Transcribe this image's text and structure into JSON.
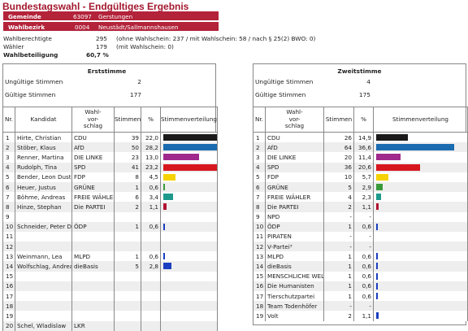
{
  "title": "Bundestagswahl - Endgültiges Ergebnis",
  "header": {
    "gemeinde_label": "Gemeinde",
    "gemeinde_nr": "63097",
    "gemeinde_name": "Gerstungen",
    "wahlbezirk_label": "Wahlbezirk",
    "wahlbezirk_nr": "0004",
    "wahlbezirk_name": "Neustädt/Sallmannshausen"
  },
  "info": {
    "wahlberechtigte_label": "Wahlberechtigte",
    "wahlberechtigte_value": "295",
    "wahlberechtigte_note": "(ohne Wahlschein: 237 / mit Wahlschein: 58 / nach § 25(2) BWO: 0)",
    "waehler_label": "Wähler",
    "waehler_value": "179",
    "waehler_note": "(mit Wahlschein: 0)",
    "beteiligung_label": "Wahlbeteiligung",
    "beteiligung_value": "60,7 %"
  },
  "columns": {
    "nr": "Nr.",
    "kandidat": "Kandidat",
    "wahlvorschlag": "Wahl-vor-schlag",
    "stimmen": "Stimmen",
    "prozent": "%",
    "verteilung": "Stimmenverteilung"
  },
  "erststimme": {
    "title": "Erststimme",
    "ungueltig_label": "Ungültige Stimmen",
    "ungueltig_value": "2",
    "gueltig_label": "Gültige Stimmen",
    "gueltig_value": "177",
    "rows": [
      {
        "nr": "1",
        "kandidat": "Hirte, Christian",
        "partei": "CDU",
        "stimmen": "39",
        "prozent": "22,0",
        "pct": 22.0,
        "color": "#1a1a1a"
      },
      {
        "nr": "2",
        "kandidat": "Stöber, Klaus",
        "partei": "AfD",
        "stimmen": "50",
        "prozent": "28,2",
        "pct": 28.2,
        "color": "#1a6bb0"
      },
      {
        "nr": "3",
        "kandidat": "Renner, Martina",
        "partei": "DIE LINKE",
        "stimmen": "23",
        "prozent": "13,0",
        "pct": 13.0,
        "color": "#a0288c"
      },
      {
        "nr": "4",
        "kandidat": "Rudolph, Tina",
        "partei": "SPD",
        "stimmen": "41",
        "prozent": "23,2",
        "pct": 23.2,
        "color": "#d7161e"
      },
      {
        "nr": "5",
        "kandidat": "Bender, Leon Dustin",
        "partei": "FDP",
        "stimmen": "8",
        "prozent": "4,5",
        "pct": 4.5,
        "color": "#f5d200"
      },
      {
        "nr": "6",
        "kandidat": "Heuer, Justus",
        "partei": "GRÜNE",
        "stimmen": "1",
        "prozent": "0,6",
        "pct": 0.6,
        "color": "#3a9a3a"
      },
      {
        "nr": "7",
        "kandidat": "Böhme, Andreas",
        "partei": "FREIE WÄHLER",
        "stimmen": "6",
        "prozent": "3,4",
        "pct": 3.4,
        "color": "#1e9a8c"
      },
      {
        "nr": "8",
        "kandidat": "Hinze, Stephan",
        "partei": "Die PARTEI",
        "stimmen": "2",
        "prozent": "1,1",
        "pct": 1.1,
        "color": "#b01030"
      },
      {
        "nr": "9",
        "kandidat": "",
        "partei": "",
        "stimmen": "",
        "prozent": "",
        "pct": 0,
        "color": "#1a3fc0"
      },
      {
        "nr": "10",
        "kandidat": "Schneider, Peter Dr.",
        "partei": "ÖDP",
        "stimmen": "1",
        "prozent": "0,6",
        "pct": 0.6,
        "color": "#1a3fc0"
      },
      {
        "nr": "11",
        "kandidat": "",
        "partei": "",
        "stimmen": "",
        "prozent": "",
        "pct": 0,
        "color": "#1a3fc0"
      },
      {
        "nr": "12",
        "kandidat": "",
        "partei": "",
        "stimmen": "",
        "prozent": "",
        "pct": 0,
        "color": "#1a3fc0"
      },
      {
        "nr": "13",
        "kandidat": "Weinmann, Lea",
        "partei": "MLPD",
        "stimmen": "1",
        "prozent": "0,6",
        "pct": 0.6,
        "color": "#1a3fc0"
      },
      {
        "nr": "14",
        "kandidat": "Wolfschlag, Andreas",
        "partei": "dieBasis",
        "stimmen": "5",
        "prozent": "2,8",
        "pct": 2.8,
        "color": "#1a3fc0"
      },
      {
        "nr": "15",
        "kandidat": "",
        "partei": "",
        "stimmen": "",
        "prozent": "",
        "pct": 0,
        "color": "#1a3fc0"
      },
      {
        "nr": "16",
        "kandidat": "",
        "partei": "",
        "stimmen": "",
        "prozent": "",
        "pct": 0,
        "color": "#1a3fc0"
      },
      {
        "nr": "17",
        "kandidat": "",
        "partei": "",
        "stimmen": "",
        "prozent": "",
        "pct": 0,
        "color": "#1a3fc0"
      },
      {
        "nr": "18",
        "kandidat": "",
        "partei": "",
        "stimmen": "",
        "prozent": "",
        "pct": 0,
        "color": "#1a3fc0"
      },
      {
        "nr": "19",
        "kandidat": "",
        "partei": "",
        "stimmen": "",
        "prozent": "",
        "pct": 0,
        "color": "#1a3fc0"
      },
      {
        "nr": "20",
        "kandidat": "Schel, Wladislaw",
        "partei": "LKR",
        "stimmen": "",
        "prozent": "",
        "pct": 0,
        "color": "#1a3fc0"
      }
    ]
  },
  "zweitstimme": {
    "title": "Zweitstimme",
    "ungueltig_label": "Ungültige Stimmen",
    "ungueltig_value": "4",
    "gueltig_label": "Gültige Stimmen",
    "gueltig_value": "175",
    "rows": [
      {
        "nr": "1",
        "partei": "CDU",
        "stimmen": "26",
        "prozent": "14,9",
        "pct": 14.9,
        "color": "#1a1a1a"
      },
      {
        "nr": "2",
        "partei": "AfD",
        "stimmen": "64",
        "prozent": "36,6",
        "pct": 36.6,
        "color": "#1a6bb0"
      },
      {
        "nr": "3",
        "partei": "DIE LINKE",
        "stimmen": "20",
        "prozent": "11,4",
        "pct": 11.4,
        "color": "#a0288c"
      },
      {
        "nr": "4",
        "partei": "SPD",
        "stimmen": "36",
        "prozent": "20,6",
        "pct": 20.6,
        "color": "#d7161e"
      },
      {
        "nr": "5",
        "partei": "FDP",
        "stimmen": "10",
        "prozent": "5,7",
        "pct": 5.7,
        "color": "#f5d200"
      },
      {
        "nr": "6",
        "partei": "GRÜNE",
        "stimmen": "5",
        "prozent": "2,9",
        "pct": 2.9,
        "color": "#3a9a3a"
      },
      {
        "nr": "7",
        "partei": "FREIE WÄHLER",
        "stimmen": "4",
        "prozent": "2,3",
        "pct": 2.3,
        "color": "#1e9a8c"
      },
      {
        "nr": "8",
        "partei": "Die PARTEI",
        "stimmen": "2",
        "prozent": "1,1",
        "pct": 1.1,
        "color": "#b01030"
      },
      {
        "nr": "9",
        "partei": "NPD",
        "stimmen": "-",
        "prozent": "-",
        "pct": 0,
        "color": "#1a3fc0"
      },
      {
        "nr": "10",
        "partei": "ÖDP",
        "stimmen": "1",
        "prozent": "0,6",
        "pct": 0.6,
        "color": "#1a3fc0"
      },
      {
        "nr": "11",
        "partei": "PIRATEN",
        "stimmen": "-",
        "prozent": "-",
        "pct": 0,
        "color": "#1a3fc0"
      },
      {
        "nr": "12",
        "partei": "V-Partei³",
        "stimmen": "-",
        "prozent": "-",
        "pct": 0,
        "color": "#1a3fc0"
      },
      {
        "nr": "13",
        "partei": "MLPD",
        "stimmen": "1",
        "prozent": "0,6",
        "pct": 0.6,
        "color": "#1a3fc0"
      },
      {
        "nr": "14",
        "partei": "dieBasis",
        "stimmen": "1",
        "prozent": "0,6",
        "pct": 0.6,
        "color": "#1a3fc0"
      },
      {
        "nr": "15",
        "partei": "MENSCHLICHE WELT",
        "stimmen": "1",
        "prozent": "0,6",
        "pct": 0.6,
        "color": "#1a3fc0"
      },
      {
        "nr": "16",
        "partei": "Die Humanisten",
        "stimmen": "1",
        "prozent": "0,6",
        "pct": 0.6,
        "color": "#1a3fc0"
      },
      {
        "nr": "17",
        "partei": "Tierschutzpartei",
        "stimmen": "1",
        "prozent": "0,6",
        "pct": 0.6,
        "color": "#1a3fc0"
      },
      {
        "nr": "18",
        "partei": "Team Todenhöfer",
        "stimmen": "-",
        "prozent": "-",
        "pct": 0,
        "color": "#1a3fc0"
      },
      {
        "nr": "19",
        "partei": "Volt",
        "stimmen": "2",
        "prozent": "1,1",
        "pct": 1.1,
        "color": "#1a3fc0"
      }
    ]
  }
}
